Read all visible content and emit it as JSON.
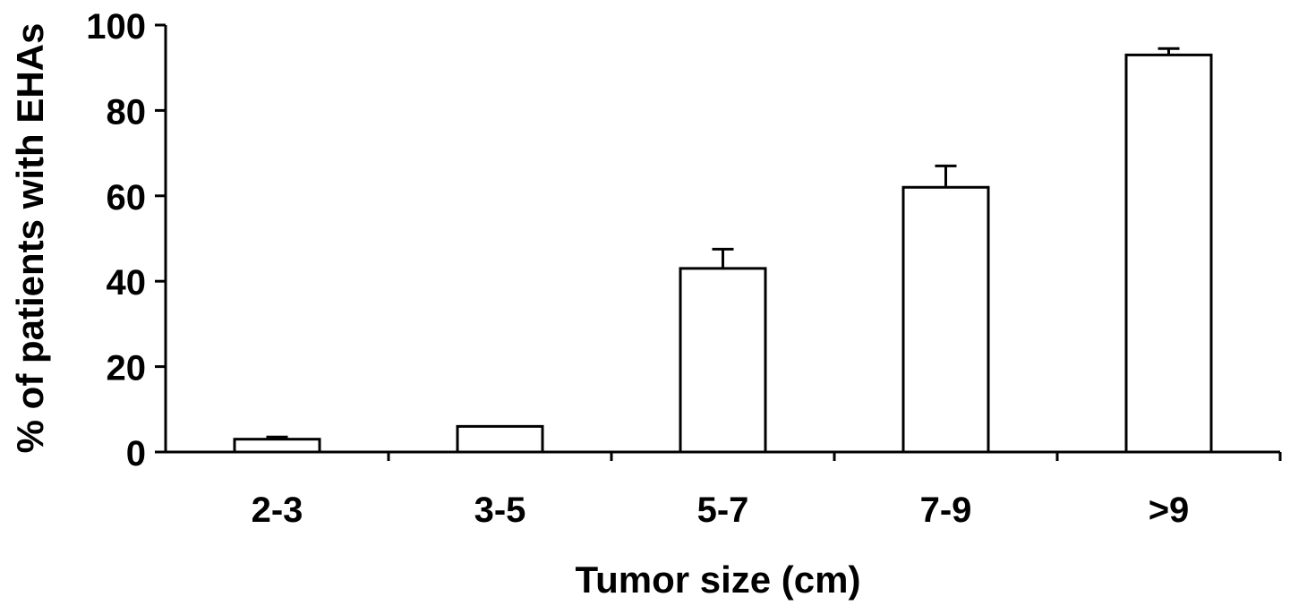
{
  "chart_data": {
    "type": "bar",
    "title": "",
    "xlabel": "Tumor size (cm)",
    "ylabel": "% of patients with EHAs",
    "categories": [
      "2-3",
      "3-5",
      "5-7",
      "7-9",
      ">9"
    ],
    "values": [
      3,
      6,
      43,
      62,
      93
    ],
    "error_upper": [
      0.5,
      0,
      4.5,
      5,
      1.5
    ],
    "ylim": [
      0,
      100
    ],
    "yticks": [
      "0",
      "20",
      "40",
      "60",
      "80",
      "100"
    ],
    "grid": false,
    "legend": "none",
    "bar_fill": "#ffffff",
    "bar_stroke": "#000000"
  }
}
